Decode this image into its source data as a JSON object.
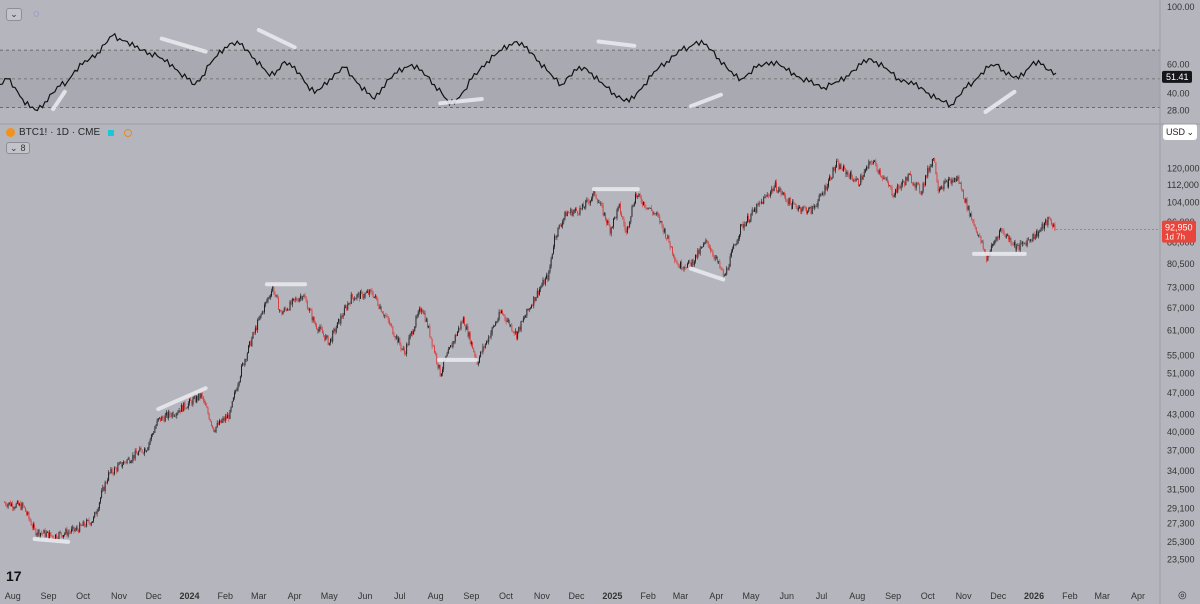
{
  "colors": {
    "background": "#b5b6bd",
    "rsi_band": "#a9aab1",
    "rsi_line": "#111111",
    "candle_up": "#1a1a1d",
    "candle_down": "#d93a3a",
    "trend_marks": "#e9e9ee",
    "price_badge": "#e8453c",
    "rsi_badge": "#15151a"
  },
  "header": {
    "symbol_label": "BTC1! · 1D · CME",
    "symbol_icon": "bitcoin-coin-icon",
    "indicator_count": "8",
    "currency_button": "USD",
    "logo_text": "17"
  },
  "chart_data": [
    {
      "type": "line",
      "name": "rsi-panel",
      "title": "",
      "y_ticks": [
        100,
        60,
        40,
        28
      ],
      "ylim": [
        20,
        100
      ],
      "band": [
        30,
        70
      ],
      "midline": 50,
      "current_value_label": "51.41",
      "current_value": 51.41,
      "series": [
        {
          "values": [
            46,
            50,
            44,
            36,
            30,
            28,
            34,
            40,
            45,
            48,
            56,
            60,
            64,
            68,
            74,
            80,
            78,
            76,
            72,
            70,
            68,
            66,
            62,
            60,
            54,
            50,
            46,
            52,
            60,
            66,
            72,
            75,
            74,
            70,
            64,
            58,
            52,
            56,
            62,
            58,
            54,
            46,
            40,
            44,
            50,
            54,
            58,
            52,
            46,
            40,
            36,
            44,
            50,
            54,
            58,
            60,
            56,
            52,
            46,
            40,
            32,
            36,
            42,
            50,
            56,
            62,
            66,
            70,
            74,
            76,
            72,
            68,
            62,
            56,
            50,
            46,
            52,
            56,
            58,
            54,
            48,
            44,
            40,
            36,
            34,
            40,
            46,
            52,
            58,
            62,
            66,
            70,
            72,
            76,
            74,
            70,
            64,
            58,
            52,
            50,
            54,
            58,
            60,
            62,
            60,
            56,
            54,
            50,
            48,
            46,
            44,
            46,
            48,
            52,
            56,
            60,
            64,
            62,
            58,
            54,
            50,
            48,
            46,
            44,
            40,
            36,
            34,
            32,
            38,
            44,
            48,
            54,
            58,
            60,
            56,
            52,
            50,
            56,
            62,
            60,
            56,
            54
          ]
        }
      ]
    },
    {
      "type": "candlestick",
      "name": "price-panel",
      "title": "BTC1! · 1D · CME",
      "scale": "log",
      "ylim": [
        22500,
        135000
      ],
      "y_ticks": [
        120000,
        112000,
        104000,
        96000,
        88000,
        80500,
        73000,
        67000,
        61000,
        55000,
        51000,
        47000,
        43000,
        40000,
        37000,
        34000,
        31500,
        29100,
        27300,
        25300,
        23500
      ],
      "x_ticks": [
        "Aug",
        "Sep",
        "Oct",
        "Nov",
        "Dec",
        "2024",
        "Feb",
        "Mar",
        "Apr",
        "May",
        "Jun",
        "Jul",
        "Aug",
        "Sep",
        "Oct",
        "Nov",
        "Dec",
        "2025",
        "Feb",
        "Mar",
        "Apr",
        "May",
        "Jun",
        "Jul",
        "Aug",
        "Sep",
        "Oct",
        "Nov",
        "Dec",
        "2026",
        "Feb",
        "Mar",
        "Apr"
      ],
      "last_price_label": "92,950",
      "last_price": 92950,
      "countdown_label": "1d 7h",
      "anchors": [
        [
          "2023-07-25",
          29800
        ],
        [
          "2023-08-10",
          29300
        ],
        [
          "2023-08-20",
          26500
        ],
        [
          "2023-09-05",
          25900
        ],
        [
          "2023-09-25",
          26600
        ],
        [
          "2023-10-10",
          27800
        ],
        [
          "2023-10-23",
          33500
        ],
        [
          "2023-11-05",
          35200
        ],
        [
          "2023-11-25",
          37500
        ],
        [
          "2023-12-05",
          42000
        ],
        [
          "2023-12-20",
          43500
        ],
        [
          "2024-01-11",
          46500
        ],
        [
          "2024-01-22",
          40500
        ],
        [
          "2024-02-05",
          43000
        ],
        [
          "2024-02-15",
          52000
        ],
        [
          "2024-02-28",
          62000
        ],
        [
          "2024-03-13",
          73000
        ],
        [
          "2024-03-20",
          65500
        ],
        [
          "2024-04-08",
          71000
        ],
        [
          "2024-04-18",
          63000
        ],
        [
          "2024-05-01",
          58000
        ],
        [
          "2024-05-20",
          70000
        ],
        [
          "2024-06-07",
          71500
        ],
        [
          "2024-06-25",
          61000
        ],
        [
          "2024-07-05",
          55500
        ],
        [
          "2024-07-20",
          67500
        ],
        [
          "2024-08-05",
          51000
        ],
        [
          "2024-08-25",
          64000
        ],
        [
          "2024-09-06",
          53500
        ],
        [
          "2024-09-27",
          66000
        ],
        [
          "2024-10-10",
          60000
        ],
        [
          "2024-10-29",
          72000
        ],
        [
          "2024-11-07",
          77000
        ],
        [
          "2024-11-12",
          90000
        ],
        [
          "2024-11-22",
          99500
        ],
        [
          "2024-12-05",
          101000
        ],
        [
          "2024-12-17",
          108000
        ],
        [
          "2024-12-30",
          93000
        ],
        [
          "2025-01-07",
          102000
        ],
        [
          "2025-01-13",
          91500
        ],
        [
          "2025-01-21",
          107500
        ],
        [
          "2025-02-10",
          97500
        ],
        [
          "2025-02-27",
          80000
        ],
        [
          "2025-03-10",
          80500
        ],
        [
          "2025-03-24",
          88500
        ],
        [
          "2025-04-08",
          76000
        ],
        [
          "2025-04-22",
          93500
        ],
        [
          "2025-05-10",
          104000
        ],
        [
          "2025-05-22",
          111500
        ],
        [
          "2025-06-05",
          103000
        ],
        [
          "2025-06-22",
          100500
        ],
        [
          "2025-07-01",
          107000
        ],
        [
          "2025-07-14",
          122000
        ],
        [
          "2025-08-02",
          113000
        ],
        [
          "2025-08-14",
          124000
        ],
        [
          "2025-09-01",
          108000
        ],
        [
          "2025-09-15",
          116000
        ],
        [
          "2025-09-25",
          109000
        ],
        [
          "2025-10-06",
          126000
        ],
        [
          "2025-10-10",
          111000
        ],
        [
          "2025-10-27",
          115000
        ],
        [
          "2025-11-05",
          101000
        ],
        [
          "2025-11-21",
          82500
        ],
        [
          "2025-12-03",
          93000
        ],
        [
          "2025-12-18",
          86000
        ],
        [
          "2026-01-05",
          92000
        ],
        [
          "2026-01-14",
          97000
        ],
        [
          "2026-01-20",
          92950
        ]
      ]
    }
  ],
  "trend_lines": [
    {
      "panel": "rsi-panel",
      "from": [
        "2023-09-05",
        29
      ],
      "to": [
        "2023-09-15",
        41
      ]
    },
    {
      "panel": "rsi-panel",
      "from": [
        "2023-12-08",
        78
      ],
      "to": [
        "2024-01-15",
        69
      ]
    },
    {
      "panel": "rsi-panel",
      "from": [
        "2024-03-01",
        84
      ],
      "to": [
        "2024-04-01",
        72
      ]
    },
    {
      "panel": "rsi-panel",
      "from": [
        "2024-08-05",
        33
      ],
      "to": [
        "2024-09-10",
        36
      ]
    },
    {
      "panel": "rsi-panel",
      "from": [
        "2024-12-20",
        76
      ],
      "to": [
        "2025-01-20",
        73
      ]
    },
    {
      "panel": "rsi-panel",
      "from": [
        "2025-03-10",
        31
      ],
      "to": [
        "2025-04-05",
        39
      ]
    },
    {
      "panel": "rsi-panel",
      "from": [
        "2025-11-20",
        27
      ],
      "to": [
        "2025-12-15",
        41
      ]
    },
    {
      "panel": "price-panel",
      "from": [
        "2023-08-20",
        25600
      ],
      "to": [
        "2023-09-18",
        25300
      ]
    },
    {
      "panel": "price-panel",
      "from": [
        "2023-12-05",
        44000
      ],
      "to": [
        "2024-01-15",
        48000
      ]
    },
    {
      "panel": "price-panel",
      "from": [
        "2024-03-08",
        74000
      ],
      "to": [
        "2024-04-10",
        74000
      ]
    },
    {
      "panel": "price-panel",
      "from": [
        "2024-08-04",
        54000
      ],
      "to": [
        "2024-09-05",
        54000
      ]
    },
    {
      "panel": "price-panel",
      "from": [
        "2024-12-16",
        110000
      ],
      "to": [
        "2025-01-23",
        110000
      ]
    },
    {
      "panel": "price-panel",
      "from": [
        "2025-03-10",
        79000
      ],
      "to": [
        "2025-04-07",
        75500
      ]
    },
    {
      "panel": "price-panel",
      "from": [
        "2025-11-10",
        84000
      ],
      "to": [
        "2025-12-24",
        84000
      ]
    }
  ]
}
